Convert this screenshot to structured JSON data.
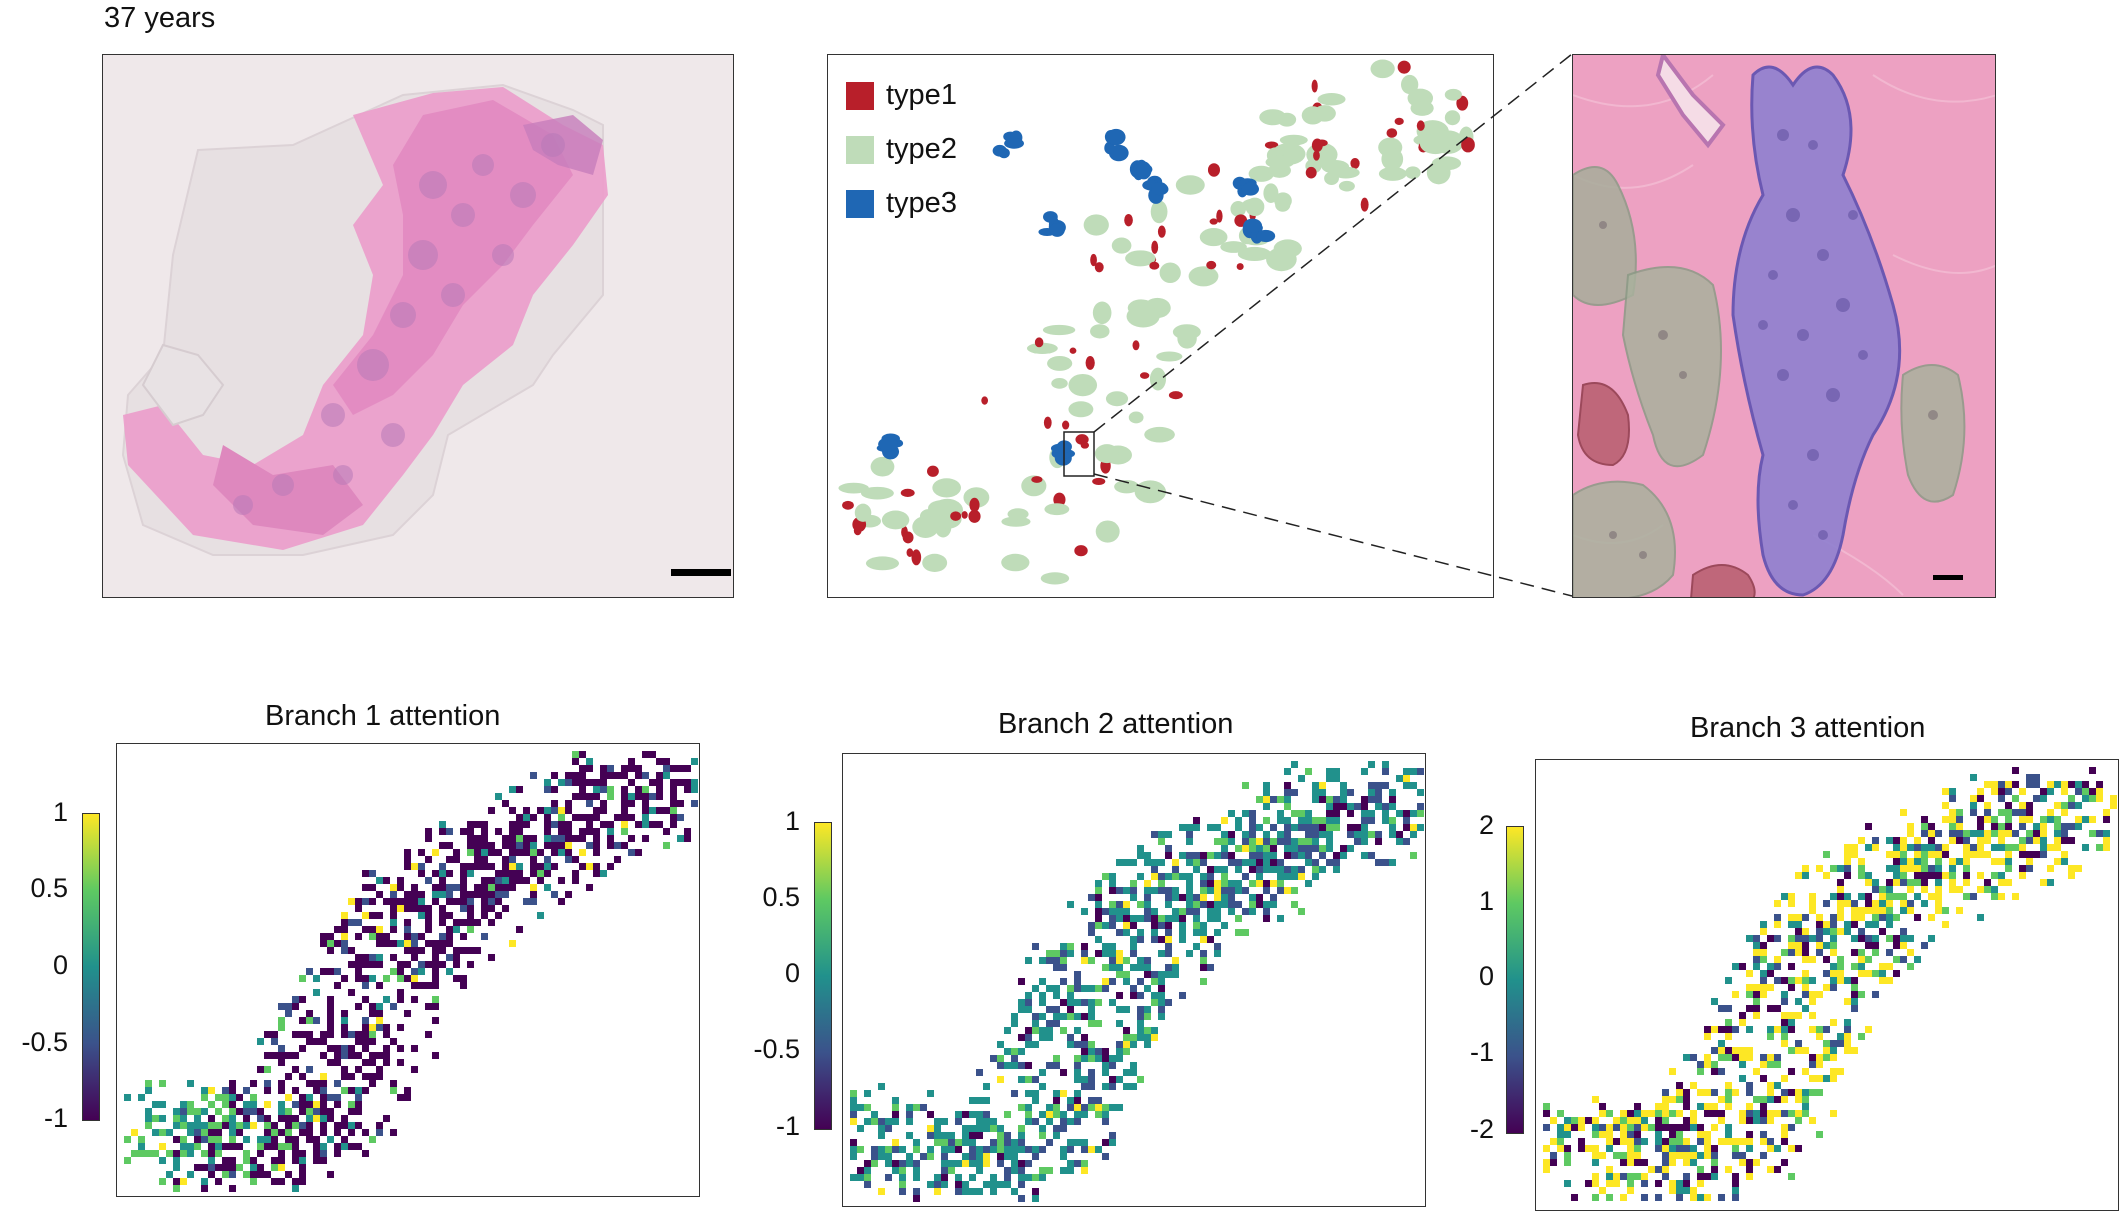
{
  "top_label": "37 years",
  "legend": [
    {
      "label": "type1",
      "color": "#b81f2a"
    },
    {
      "label": "type2",
      "color": "#bfdcb9"
    },
    {
      "label": "type3",
      "color": "#1f67b4"
    }
  ],
  "colors": {
    "tissue_bg": "#ece4e6",
    "tissue_pink": "#ea9ccb",
    "tissue_dark": "#c784bd",
    "zoom_bg": "#ec9fc1",
    "duct_blue": "#8d7fd0",
    "viridis": [
      "#440154",
      "#3b528b",
      "#21918c",
      "#5ec962",
      "#fde725"
    ]
  },
  "heatmaps": [
    {
      "title": "Branch 1 attention",
      "ticks": [
        "1",
        "0.5",
        "0",
        "-0.5",
        "-1"
      ]
    },
    {
      "title": "Branch 2 attention",
      "ticks": [
        "1",
        "0.5",
        "0",
        "-0.5",
        "-1"
      ]
    },
    {
      "title": "Branch 3 attention",
      "ticks": [
        "2",
        "1",
        "0",
        "-1",
        "-2"
      ]
    }
  ]
}
